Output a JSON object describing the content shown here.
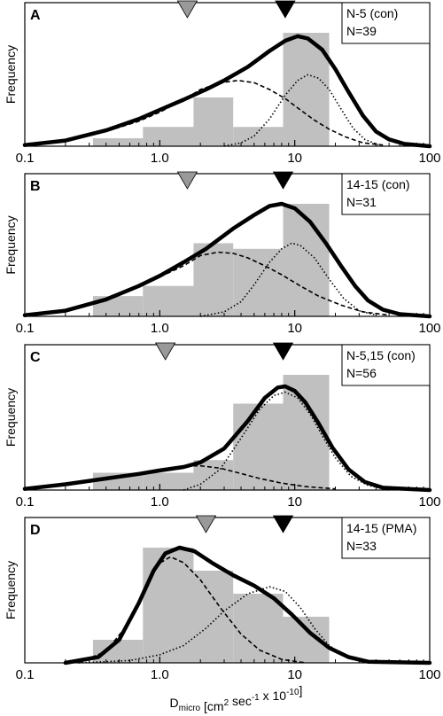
{
  "chart_data": [
    {
      "type": "histogram",
      "panel": "A",
      "info": [
        "N-5 (con)",
        "N=39"
      ],
      "ylabel": "Frequency",
      "xscale": "log",
      "xlim": [
        0.1,
        100
      ],
      "xticks": [
        "0.1",
        "1.0",
        "10",
        "100"
      ],
      "markers": [
        {
          "x": 1.6,
          "color": "#999999"
        },
        {
          "x": 8.5,
          "color": "#000000"
        }
      ],
      "bins": [
        {
          "x0": 0.32,
          "x1": 0.75,
          "value": 0.07
        },
        {
          "x0": 0.75,
          "x1": 1.78,
          "value": 0.17
        },
        {
          "x0": 1.78,
          "x1": 3.5,
          "value": 0.43
        },
        {
          "x0": 3.5,
          "x1": 8.2,
          "value": 0.17
        },
        {
          "x0": 8.2,
          "x1": 18,
          "value": 1.0
        }
      ],
      "fit_total": [
        [
          0.1,
          0.01
        ],
        [
          0.2,
          0.05
        ],
        [
          0.4,
          0.14
        ],
        [
          0.7,
          0.24
        ],
        [
          1.0,
          0.32
        ],
        [
          1.5,
          0.41
        ],
        [
          2.2,
          0.5
        ],
        [
          3.0,
          0.58
        ],
        [
          4.5,
          0.7
        ],
        [
          6.5,
          0.84
        ],
        [
          8.5,
          0.93
        ],
        [
          10.5,
          0.97
        ],
        [
          12.5,
          0.95
        ],
        [
          16,
          0.85
        ],
        [
          20,
          0.68
        ],
        [
          25,
          0.48
        ],
        [
          32,
          0.27
        ],
        [
          40,
          0.13
        ],
        [
          50,
          0.06
        ],
        [
          65,
          0.02
        ],
        [
          100,
          0.0
        ]
      ],
      "fit_component1": [
        [
          0.1,
          0.01
        ],
        [
          0.2,
          0.05
        ],
        [
          0.4,
          0.13
        ],
        [
          0.7,
          0.22
        ],
        [
          1.0,
          0.3
        ],
        [
          1.5,
          0.41
        ],
        [
          2.0,
          0.5
        ],
        [
          2.8,
          0.56
        ],
        [
          3.8,
          0.58
        ],
        [
          5.0,
          0.56
        ],
        [
          6.5,
          0.5
        ],
        [
          8.5,
          0.42
        ],
        [
          11,
          0.32
        ],
        [
          14,
          0.23
        ],
        [
          18,
          0.15
        ],
        [
          24,
          0.08
        ],
        [
          32,
          0.03
        ],
        [
          45,
          0.01
        ]
      ],
      "fit_component2": [
        [
          3,
          0.0
        ],
        [
          4,
          0.03
        ],
        [
          5,
          0.09
        ],
        [
          6.5,
          0.24
        ],
        [
          8.5,
          0.45
        ],
        [
          10.5,
          0.58
        ],
        [
          12.5,
          0.63
        ],
        [
          15,
          0.6
        ],
        [
          18,
          0.5
        ],
        [
          22,
          0.33
        ],
        [
          27,
          0.16
        ],
        [
          33,
          0.06
        ],
        [
          42,
          0.01
        ]
      ]
    },
    {
      "type": "histogram",
      "panel": "B",
      "info": [
        "14-15 (con)",
        "N=31"
      ],
      "ylabel": "Frequency",
      "xscale": "log",
      "xlim": [
        0.1,
        100
      ],
      "xticks": [
        "0.1",
        "1.0",
        "10",
        "100"
      ],
      "markers": [
        {
          "x": 1.6,
          "color": "#999999"
        },
        {
          "x": 8.2,
          "color": "#000000"
        }
      ],
      "bins": [
        {
          "x0": 0.32,
          "x1": 0.75,
          "value": 0.18
        },
        {
          "x0": 0.75,
          "x1": 1.78,
          "value": 0.27
        },
        {
          "x0": 1.78,
          "x1": 3.5,
          "value": 0.65
        },
        {
          "x0": 3.5,
          "x1": 8.2,
          "value": 0.6
        },
        {
          "x0": 8.2,
          "x1": 18,
          "value": 1.0
        }
      ],
      "fit_total": [
        [
          0.1,
          0.01
        ],
        [
          0.2,
          0.05
        ],
        [
          0.4,
          0.15
        ],
        [
          0.7,
          0.27
        ],
        [
          1.0,
          0.36
        ],
        [
          1.5,
          0.48
        ],
        [
          2.2,
          0.6
        ],
        [
          3.5,
          0.78
        ],
        [
          5.0,
          0.9
        ],
        [
          6.5,
          0.98
        ],
        [
          8.0,
          1.0
        ],
        [
          10,
          0.96
        ],
        [
          13,
          0.84
        ],
        [
          17,
          0.65
        ],
        [
          22,
          0.45
        ],
        [
          28,
          0.27
        ],
        [
          35,
          0.14
        ],
        [
          45,
          0.06
        ],
        [
          60,
          0.02
        ],
        [
          100,
          0.0
        ]
      ],
      "fit_component1": [
        [
          0.1,
          0.01
        ],
        [
          0.2,
          0.05
        ],
        [
          0.4,
          0.15
        ],
        [
          0.7,
          0.27
        ],
        [
          1.0,
          0.35
        ],
        [
          1.5,
          0.45
        ],
        [
          2.0,
          0.54
        ],
        [
          2.7,
          0.57
        ],
        [
          3.5,
          0.56
        ],
        [
          4.5,
          0.52
        ],
        [
          6,
          0.45
        ],
        [
          8,
          0.37
        ],
        [
          11,
          0.27
        ],
        [
          15,
          0.18
        ],
        [
          22,
          0.1
        ],
        [
          32,
          0.04
        ],
        [
          50,
          0.01
        ]
      ],
      "fit_component2": [
        [
          2,
          0.0
        ],
        [
          3,
          0.04
        ],
        [
          4,
          0.13
        ],
        [
          5,
          0.28
        ],
        [
          6.5,
          0.48
        ],
        [
          8,
          0.6
        ],
        [
          9.5,
          0.65
        ],
        [
          11,
          0.63
        ],
        [
          14,
          0.52
        ],
        [
          18,
          0.33
        ],
        [
          23,
          0.16
        ],
        [
          30,
          0.05
        ],
        [
          40,
          0.01
        ]
      ]
    },
    {
      "type": "histogram",
      "panel": "C",
      "info": [
        "N-5,15 (con)",
        "N=56"
      ],
      "ylabel": "Frequency",
      "xscale": "log",
      "xlim": [
        0.1,
        100
      ],
      "xticks": [
        "0.1",
        "1.0",
        "10",
        "100"
      ],
      "markers": [
        {
          "x": 1.1,
          "color": "#999999"
        },
        {
          "x": 8.2,
          "color": "#000000"
        }
      ],
      "bins": [
        {
          "x0": 0.32,
          "x1": 0.75,
          "value": 0.15
        },
        {
          "x0": 0.75,
          "x1": 1.78,
          "value": 0.15
        },
        {
          "x0": 1.78,
          "x1": 3.5,
          "value": 0.26
        },
        {
          "x0": 3.5,
          "x1": 8.2,
          "value": 0.75
        },
        {
          "x0": 8.2,
          "x1": 18,
          "value": 1.0
        }
      ],
      "fit_total": [
        [
          0.1,
          0.01
        ],
        [
          0.2,
          0.05
        ],
        [
          0.4,
          0.1
        ],
        [
          0.7,
          0.14
        ],
        [
          1.0,
          0.17
        ],
        [
          1.5,
          0.2
        ],
        [
          2.0,
          0.24
        ],
        [
          3.0,
          0.36
        ],
        [
          4.5,
          0.6
        ],
        [
          6.0,
          0.8
        ],
        [
          7.5,
          0.89
        ],
        [
          8.5,
          0.9
        ],
        [
          10,
          0.86
        ],
        [
          12,
          0.76
        ],
        [
          15,
          0.58
        ],
        [
          19,
          0.37
        ],
        [
          25,
          0.18
        ],
        [
          33,
          0.07
        ],
        [
          45,
          0.02
        ],
        [
          100,
          0.0
        ]
      ],
      "fit_component1": [
        [
          0.1,
          0.01
        ],
        [
          0.2,
          0.04
        ],
        [
          0.4,
          0.09
        ],
        [
          0.7,
          0.14
        ],
        [
          1.0,
          0.17
        ],
        [
          1.5,
          0.21
        ],
        [
          2.0,
          0.21
        ],
        [
          2.8,
          0.19
        ],
        [
          3.8,
          0.15
        ],
        [
          5.5,
          0.1
        ],
        [
          8,
          0.06
        ],
        [
          12,
          0.03
        ],
        [
          20,
          0.01
        ]
      ],
      "fit_component2": [
        [
          1.5,
          0.0
        ],
        [
          2.0,
          0.05
        ],
        [
          2.8,
          0.18
        ],
        [
          4.0,
          0.45
        ],
        [
          5.5,
          0.7
        ],
        [
          7.0,
          0.82
        ],
        [
          8.5,
          0.85
        ],
        [
          10.5,
          0.8
        ],
        [
          13,
          0.66
        ],
        [
          16,
          0.47
        ],
        [
          20,
          0.28
        ],
        [
          26,
          0.12
        ],
        [
          35,
          0.04
        ],
        [
          50,
          0.0
        ]
      ]
    },
    {
      "type": "histogram",
      "panel": "D",
      "info": [
        "14-15 (PMA)",
        "N=33"
      ],
      "ylabel": "Frequency",
      "xscale": "log",
      "xlim": [
        0.1,
        100
      ],
      "xticks": [
        "0.1",
        "1.0",
        "10",
        "100"
      ],
      "xlabel": {
        "main": "D",
        "sub": "micro",
        "pre": "[cm",
        "sup": "2",
        "mid": " sec",
        "sup2": "-1",
        "post": " x 10",
        "sup3": "-10",
        "end": "]"
      },
      "markers": [
        {
          "x": 2.2,
          "color": "#999999"
        },
        {
          "x": 8.2,
          "color": "#000000"
        }
      ],
      "bins": [
        {
          "x0": 0.32,
          "x1": 0.75,
          "value": 0.2
        },
        {
          "x0": 0.75,
          "x1": 1.78,
          "value": 1.0
        },
        {
          "x0": 1.78,
          "x1": 3.5,
          "value": 0.8
        },
        {
          "x0": 3.5,
          "x1": 8.2,
          "value": 0.6
        },
        {
          "x0": 8.2,
          "x1": 18,
          "value": 0.4
        }
      ],
      "fit_total": [
        [
          0.2,
          0.0
        ],
        [
          0.35,
          0.05
        ],
        [
          0.5,
          0.2
        ],
        [
          0.7,
          0.52
        ],
        [
          0.9,
          0.8
        ],
        [
          1.1,
          0.95
        ],
        [
          1.4,
          1.0
        ],
        [
          1.8,
          0.97
        ],
        [
          2.5,
          0.86
        ],
        [
          3.5,
          0.76
        ],
        [
          5.0,
          0.67
        ],
        [
          7.0,
          0.56
        ],
        [
          9.5,
          0.42
        ],
        [
          13,
          0.26
        ],
        [
          18,
          0.13
        ],
        [
          25,
          0.05
        ],
        [
          35,
          0.01
        ],
        [
          100,
          0.0
        ]
      ],
      "fit_component1": [
        [
          0.25,
          0.0
        ],
        [
          0.4,
          0.1
        ],
        [
          0.55,
          0.3
        ],
        [
          0.75,
          0.6
        ],
        [
          0.95,
          0.85
        ],
        [
          1.2,
          0.92
        ],
        [
          1.5,
          0.87
        ],
        [
          2.0,
          0.72
        ],
        [
          2.8,
          0.48
        ],
        [
          4.0,
          0.25
        ],
        [
          5.5,
          0.11
        ],
        [
          8,
          0.03
        ],
        [
          12,
          0.0
        ]
      ],
      "fit_component2": [
        [
          0.25,
          0.0
        ],
        [
          0.6,
          0.02
        ],
        [
          1.0,
          0.07
        ],
        [
          1.5,
          0.15
        ],
        [
          2.2,
          0.3
        ],
        [
          3.0,
          0.45
        ],
        [
          4.5,
          0.6
        ],
        [
          6.5,
          0.66
        ],
        [
          8.5,
          0.62
        ],
        [
          11,
          0.48
        ],
        [
          14,
          0.3
        ],
        [
          18,
          0.15
        ],
        [
          24,
          0.05
        ],
        [
          32,
          0.01
        ]
      ]
    }
  ]
}
